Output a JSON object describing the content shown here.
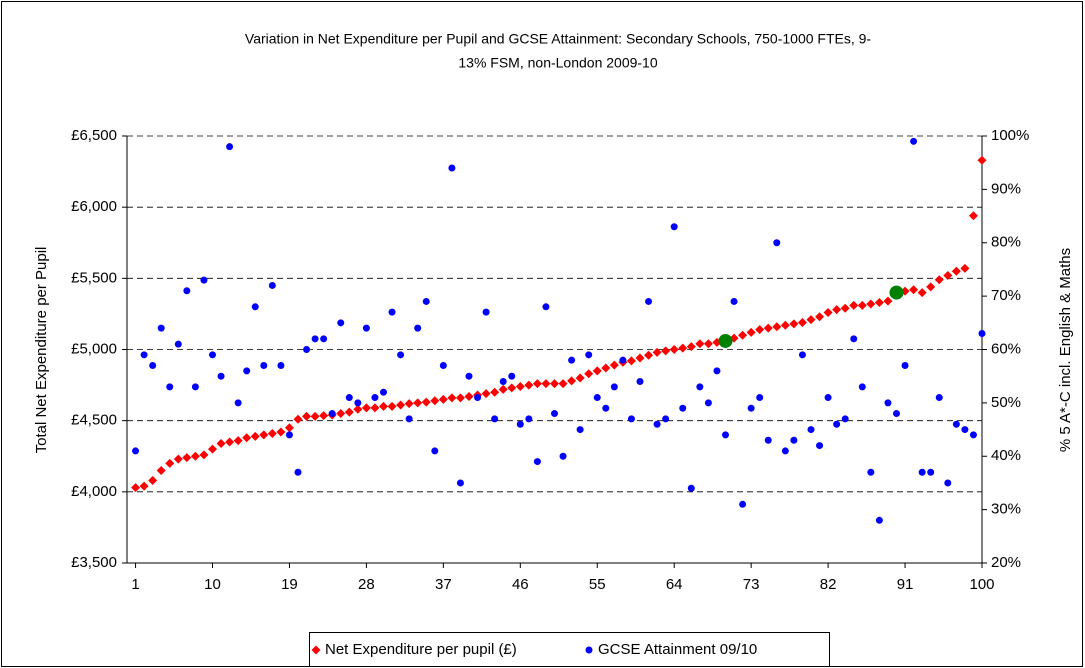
{
  "chart_data": {
    "type": "scatter",
    "title": [
      "Variation in Net Expenditure per Pupil and GCSE Attainment: Secondary Schools, 750-1000 FTEs, 9-",
      "13% FSM, non-London 2009-10"
    ],
    "y_label": "Total Net Expenditure per Pupil",
    "y2_label": "% 5 A*-C incl. English & Maths",
    "x": [
      1,
      2,
      3,
      4,
      5,
      6,
      7,
      8,
      9,
      10,
      11,
      12,
      13,
      14,
      15,
      16,
      17,
      18,
      19,
      20,
      21,
      22,
      23,
      24,
      25,
      26,
      27,
      28,
      29,
      30,
      31,
      32,
      33,
      34,
      35,
      36,
      37,
      38,
      39,
      40,
      41,
      42,
      43,
      44,
      45,
      46,
      47,
      48,
      49,
      50,
      51,
      52,
      53,
      54,
      55,
      56,
      57,
      58,
      59,
      60,
      61,
      62,
      63,
      64,
      65,
      66,
      67,
      68,
      69,
      70,
      71,
      72,
      73,
      74,
      75,
      76,
      77,
      78,
      79,
      80,
      81,
      82,
      83,
      84,
      85,
      86,
      87,
      88,
      89,
      90,
      91,
      92,
      93,
      94,
      95,
      96,
      97,
      98,
      99,
      100
    ],
    "xlim": [
      0,
      100
    ],
    "xticks": [
      1,
      10,
      19,
      28,
      37,
      46,
      55,
      64,
      73,
      82,
      91,
      100
    ],
    "ylim": [
      3500,
      6500
    ],
    "yticks": [
      {
        "value": 3500,
        "label": "£3,500"
      },
      {
        "value": 4000,
        "label": "£4,000"
      },
      {
        "value": 4500,
        "label": "£4,500"
      },
      {
        "value": 5000,
        "label": "£5,000"
      },
      {
        "value": 5500,
        "label": "£5,500"
      },
      {
        "value": 6000,
        "label": "£6,000"
      },
      {
        "value": 6500,
        "label": "£6,500"
      }
    ],
    "y2lim": [
      20,
      100
    ],
    "y2ticks": [
      {
        "value": 20,
        "label": "20%"
      },
      {
        "value": 30,
        "label": "30%"
      },
      {
        "value": 40,
        "label": "40%"
      },
      {
        "value": 50,
        "label": "50%"
      },
      {
        "value": 60,
        "label": "60%"
      },
      {
        "value": 70,
        "label": "70%"
      },
      {
        "value": 80,
        "label": "80%"
      },
      {
        "value": 90,
        "label": "90%"
      },
      {
        "value": 100,
        "label": "100%"
      }
    ],
    "grid": true,
    "legend": "bottom",
    "series": [
      {
        "name": "Net Expenditure per pupil (£)",
        "color": "#ff0000",
        "marker": "diamond",
        "values": [
          4030,
          4040,
          4080,
          4150,
          4200,
          4230,
          4240,
          4250,
          4260,
          4300,
          4340,
          4350,
          4360,
          4380,
          4390,
          4400,
          4410,
          4420,
          4450,
          4510,
          4530,
          4530,
          4535,
          4540,
          4550,
          4560,
          4580,
          4590,
          4590,
          4600,
          4600,
          4610,
          4620,
          4625,
          4630,
          4640,
          4650,
          4660,
          4660,
          4670,
          4680,
          4690,
          4700,
          4720,
          4730,
          4740,
          4750,
          4760,
          4760,
          4760,
          4760,
          4780,
          4800,
          4830,
          4850,
          4870,
          4890,
          4910,
          4920,
          4940,
          4960,
          4980,
          4990,
          5000,
          5010,
          5020,
          5040,
          5040,
          5050,
          5060,
          5080,
          5100,
          5120,
          5140,
          5150,
          5160,
          5170,
          5180,
          5190,
          5210,
          5230,
          5260,
          5280,
          5290,
          5310,
          5310,
          5320,
          5330,
          5340,
          5400,
          5410,
          5420,
          5400,
          5440,
          5490,
          5520,
          5550,
          5570,
          5940,
          6330
        ]
      },
      {
        "name": "GCSE Attainment 09/10",
        "color": "#0000ff",
        "marker": "circle",
        "axis": "y2",
        "values": [
          41,
          59,
          57,
          64,
          53,
          61,
          71,
          53,
          73,
          59,
          55,
          98,
          50,
          56,
          68,
          57,
          72,
          57,
          44,
          37,
          60,
          62,
          62,
          48,
          65,
          51,
          50,
          64,
          51,
          52,
          67,
          59,
          47,
          64,
          69,
          41,
          57,
          94,
          35,
          55,
          51,
          67,
          47,
          54,
          55,
          46,
          47,
          39,
          68,
          48,
          40,
          58,
          45,
          59,
          51,
          49,
          53,
          58,
          47,
          54,
          69,
          46,
          47,
          83,
          49,
          34,
          53,
          50,
          56,
          44,
          69,
          31,
          49,
          51,
          43,
          80,
          41,
          43,
          59,
          45,
          42,
          51,
          46,
          47,
          62,
          53,
          37,
          28,
          50,
          48,
          57,
          99,
          37,
          37,
          51,
          35,
          46,
          45,
          44,
          63
        ]
      },
      {
        "color": "#008000",
        "marker": "big-circle",
        "x": [
          70,
          90
        ],
        "values": [
          5060,
          5400
        ]
      }
    ]
  }
}
